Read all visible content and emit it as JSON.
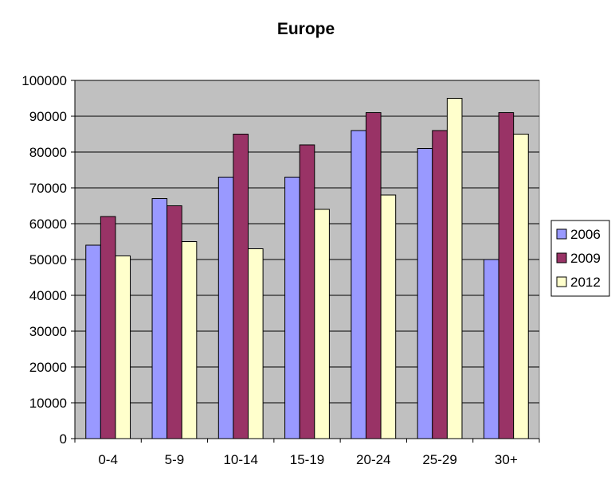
{
  "chart_data": {
    "type": "bar",
    "title": "Europe",
    "xlabel": "",
    "ylabel": "",
    "categories": [
      "0-4",
      "5-9",
      "10-14",
      "15-19",
      "20-24",
      "25-29",
      "30+"
    ],
    "series": [
      {
        "name": "2006",
        "color": "#9999ff",
        "values": [
          54000,
          67000,
          73000,
          73000,
          86000,
          81000,
          50000
        ]
      },
      {
        "name": "2009",
        "color": "#993366",
        "values": [
          62000,
          65000,
          85000,
          82000,
          91000,
          86000,
          91000
        ]
      },
      {
        "name": "2012",
        "color": "#ffffcc",
        "values": [
          51000,
          55000,
          53000,
          64000,
          68000,
          95000,
          85000
        ]
      }
    ],
    "ylim": [
      0,
      100000
    ],
    "yticks": [
      "0",
      "10000",
      "20000",
      "30000",
      "40000",
      "50000",
      "60000",
      "70000",
      "80000",
      "90000",
      "100000"
    ],
    "grid": true,
    "legend_position": "right",
    "plot_background": "#c0c0c0"
  }
}
